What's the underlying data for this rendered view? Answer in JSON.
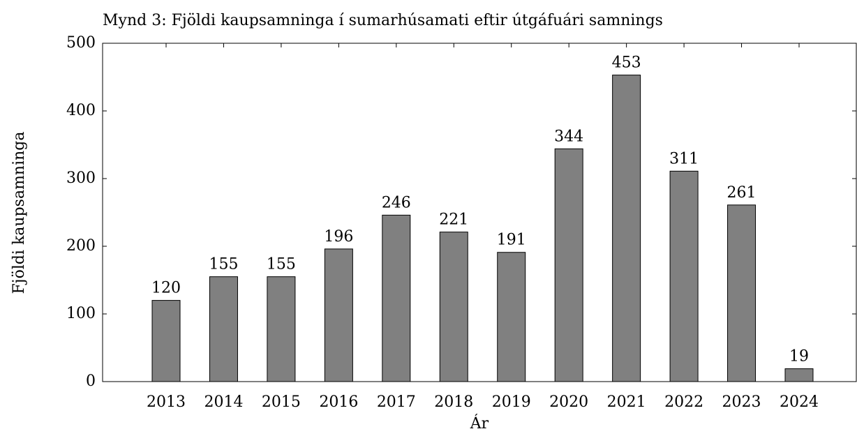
{
  "chart_data": {
    "type": "bar",
    "title": "Mynd 3: Fjöldi kaupsamninga í sumarhúsamati eftir útgáfuári samnings",
    "x_label": "Ár",
    "y_label": "Fjöldi kaupsamninga",
    "categories": [
      "2013",
      "2014",
      "2015",
      "2016",
      "2017",
      "2018",
      "2019",
      "2020",
      "2021",
      "2022",
      "2023",
      "2024"
    ],
    "values": [
      120,
      155,
      155,
      196,
      246,
      221,
      191,
      344,
      453,
      311,
      261,
      19
    ],
    "color": "#808080",
    "ylim": [
      0,
      500
    ],
    "yticks": [
      0,
      100,
      200,
      300,
      400,
      500
    ],
    "grid": false
  }
}
